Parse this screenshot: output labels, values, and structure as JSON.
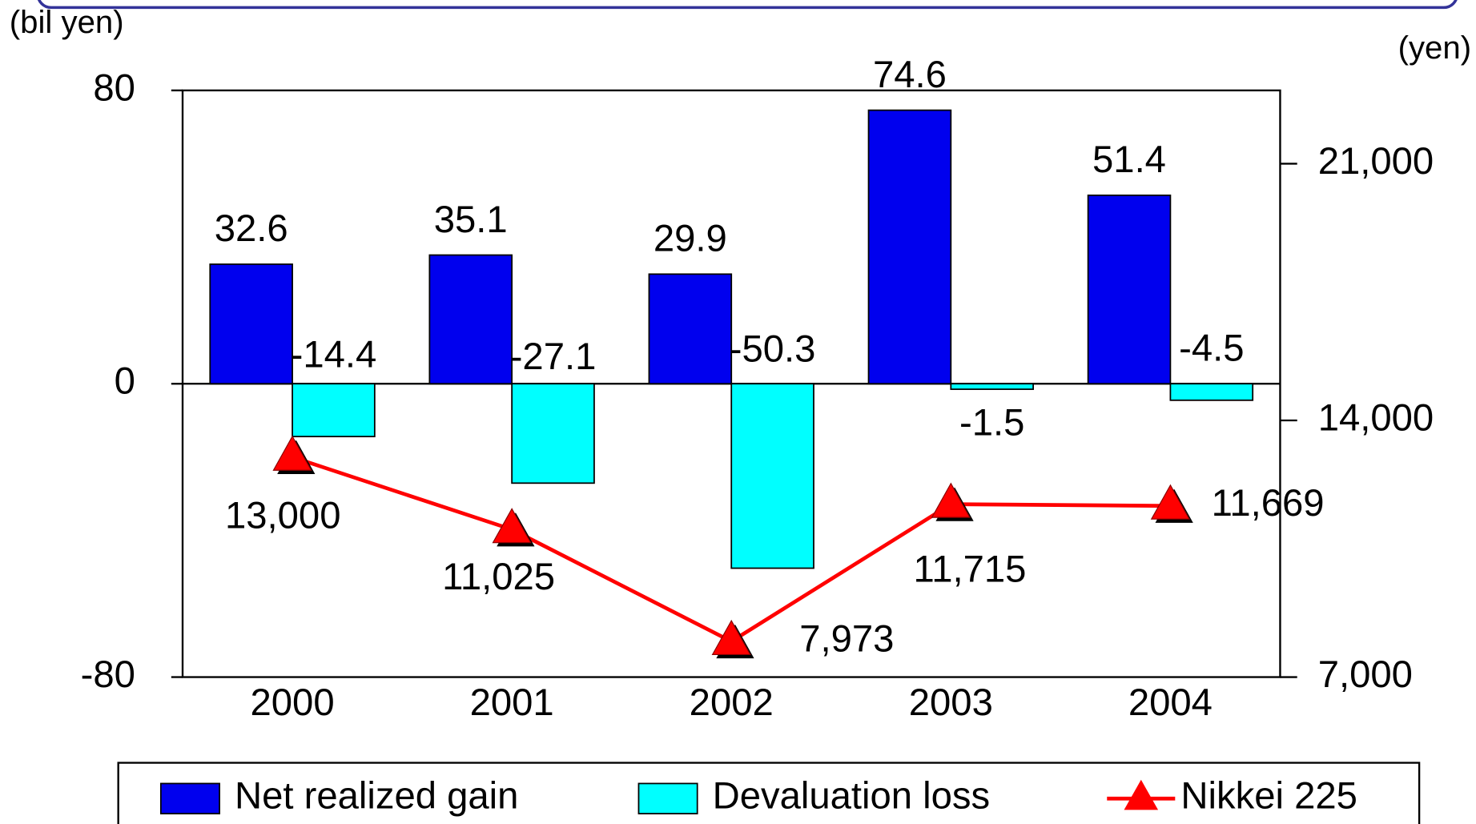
{
  "chart_data": {
    "type": "bar",
    "y_label": "(bil yen)",
    "y2_label": "(yen)",
    "categories": [
      "2000",
      "2001",
      "2002",
      "2003",
      "2004"
    ],
    "series": [
      {
        "name": "Net realized gain",
        "color": "#0000ee",
        "values": [
          32.6,
          35.1,
          29.9,
          74.6,
          51.4
        ]
      },
      {
        "name": "Devaluation loss",
        "color": "#00ffff",
        "values": [
          -14.4,
          -27.1,
          -50.3,
          -1.5,
          -4.5
        ]
      },
      {
        "name": "Nikkei 225",
        "type": "line",
        "axis": "y2",
        "color": "#ff0000",
        "values": [
          13000,
          11025,
          7973,
          11715,
          11669
        ],
        "value_labels": [
          "13,000",
          "11,025",
          "7,973",
          "11,715",
          "11,669"
        ]
      }
    ],
    "ylim": [
      -80,
      80
    ],
    "yticks": [
      -80,
      0,
      80
    ],
    "y2lim": [
      7000,
      23000
    ],
    "y2ticks": [
      {
        "value": 7000,
        "label": "7,000"
      },
      {
        "value": 14000,
        "label": "14,000"
      },
      {
        "value": 21000,
        "label": "21,000"
      }
    ]
  }
}
